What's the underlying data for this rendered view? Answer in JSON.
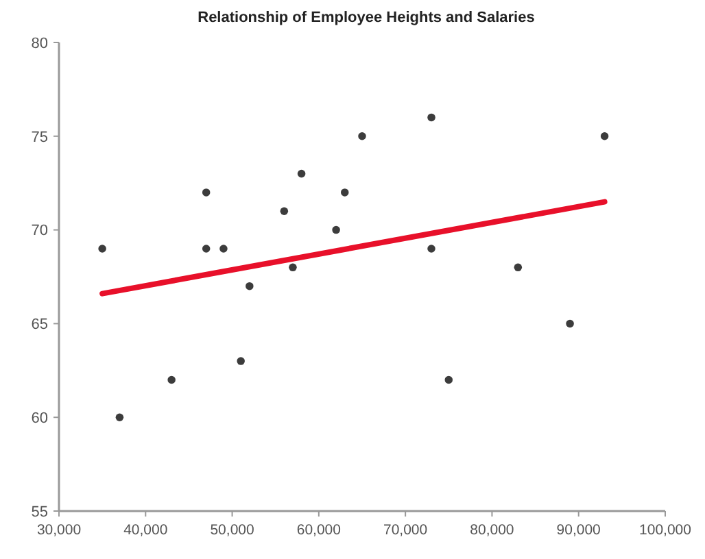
{
  "chart_data": {
    "type": "scatter",
    "title": "Relationship of Employee Heights and Salaries",
    "x": [
      35000,
      37000,
      43000,
      47000,
      47000,
      49000,
      51000,
      52000,
      56000,
      57000,
      58000,
      62000,
      63000,
      65000,
      73000,
      73000,
      75000,
      83000,
      89000,
      93000
    ],
    "series": [
      {
        "color": "#3c3c3c",
        "values": [
          69,
          60,
          62,
          72,
          69,
          69,
          63,
          67,
          71,
          68,
          73,
          70,
          72,
          75,
          76,
          69,
          62,
          68,
          65,
          75
        ]
      },
      {
        "type": "line",
        "marker": "none",
        "color": "#e8102a",
        "x": [
          35000,
          93000
        ],
        "values": [
          66.6,
          71.5
        ]
      }
    ],
    "xlim": [
      30000,
      100000
    ],
    "xticks": [
      {
        "value": 30000,
        "label": "30,000"
      },
      {
        "value": 40000,
        "label": "40,000"
      },
      {
        "value": 50000,
        "label": "50,000"
      },
      {
        "value": 60000,
        "label": "60,000"
      },
      {
        "value": 70000,
        "label": "70,000"
      },
      {
        "value": 80000,
        "label": "80,000"
      },
      {
        "value": 90000,
        "label": "90,000"
      },
      {
        "value": 100000,
        "label": "100,000"
      }
    ],
    "ylim": [
      55,
      80
    ],
    "yticks": [
      55,
      60,
      65,
      70,
      75,
      80
    ],
    "grid": false,
    "marker": "circle"
  }
}
